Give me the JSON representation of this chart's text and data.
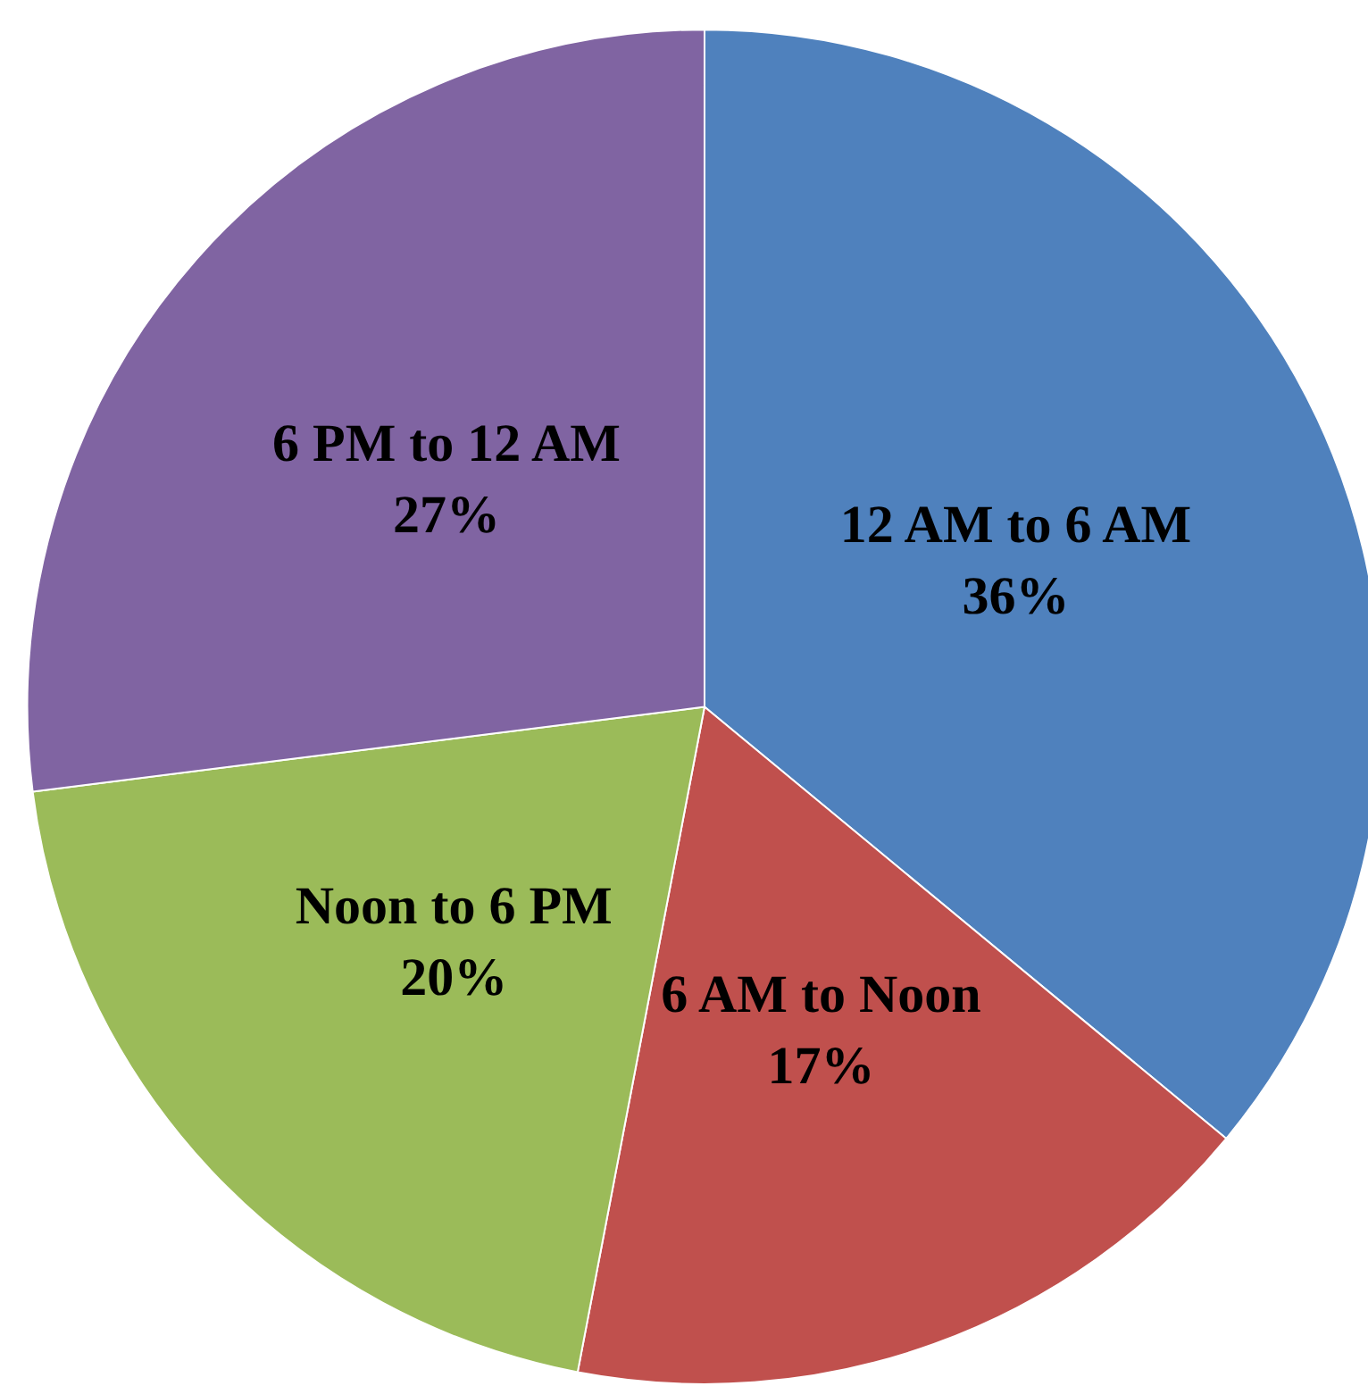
{
  "chart_data": {
    "type": "pie",
    "categories": [
      "12 AM to 6 AM",
      "6 AM to Noon",
      "Noon to 6 PM",
      "6 PM to 12 AM"
    ],
    "values": [
      36,
      17,
      20,
      27
    ],
    "value_labels": [
      "36%",
      "17%",
      "20%",
      "27%"
    ],
    "colors": [
      "#4f81bd",
      "#c0504d",
      "#9bbb59",
      "#8064a2"
    ],
    "legend": false
  }
}
